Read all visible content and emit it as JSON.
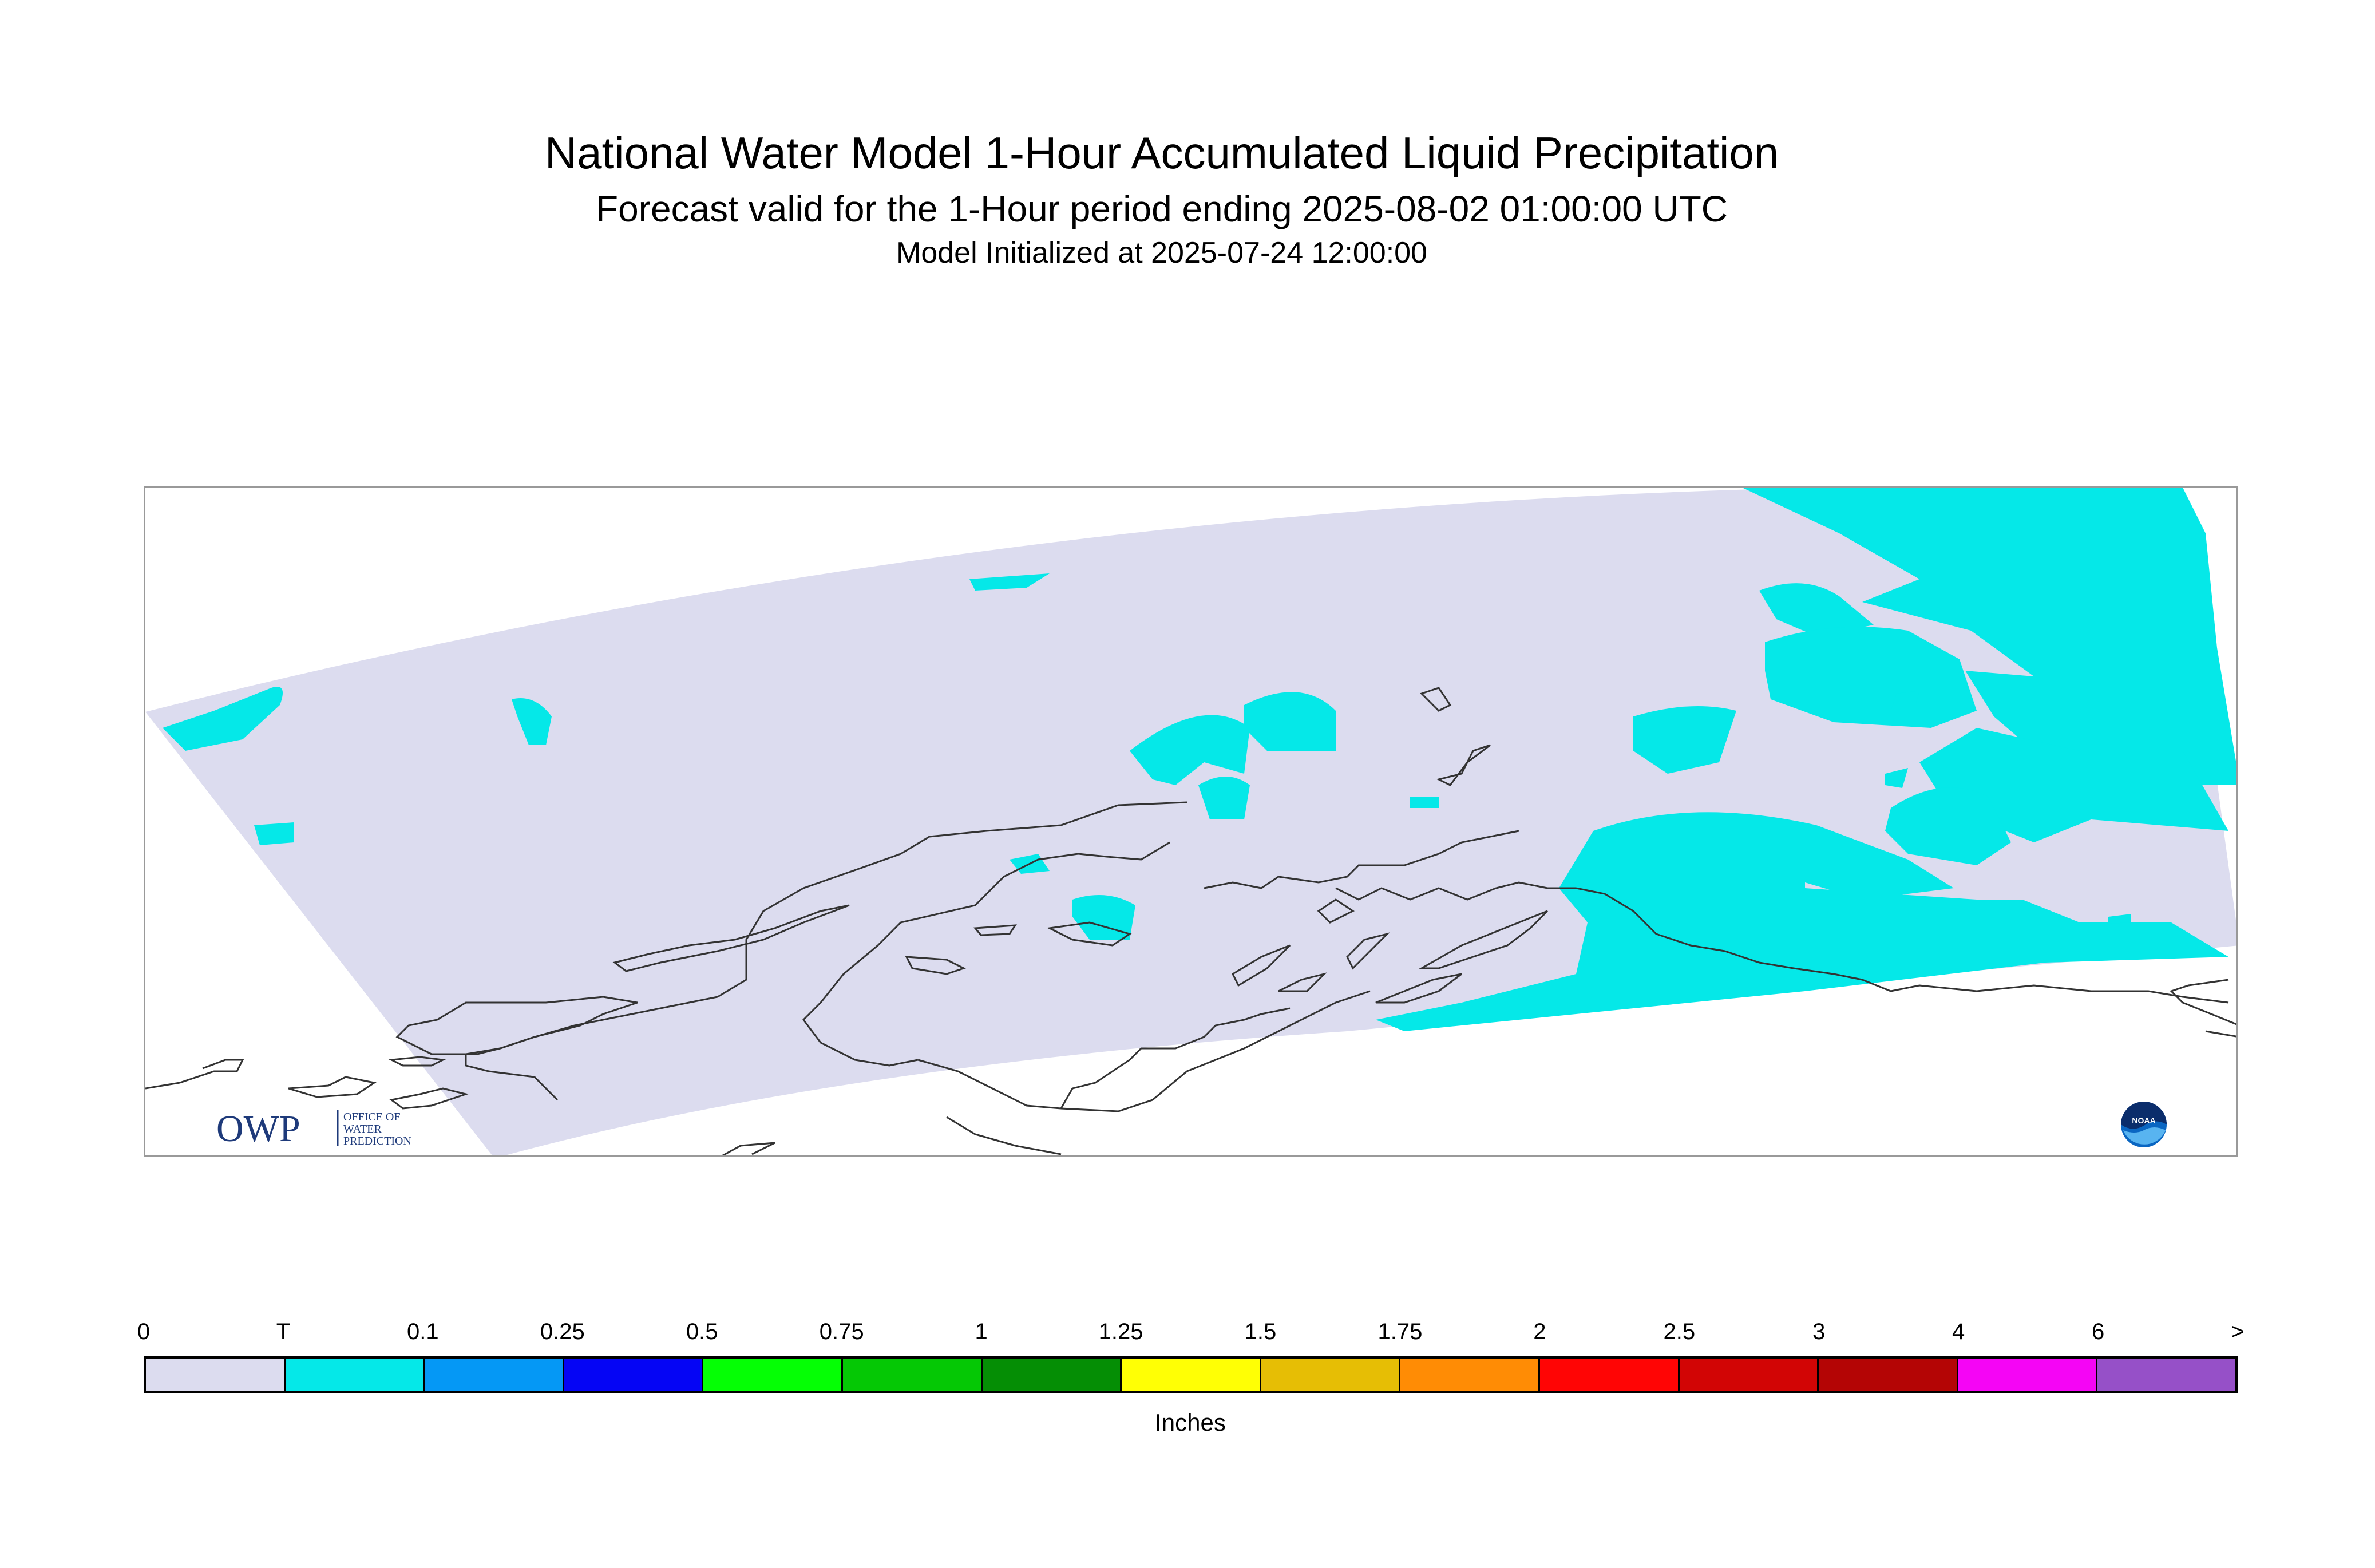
{
  "header": {
    "title": "National Water Model 1-Hour Accumulated Liquid Precipitation",
    "subtitle": "Forecast valid for the 1-Hour period ending 2025-08-02 01:00:00 UTC",
    "init": "Model Initialized at 2025-07-24 12:00:00"
  },
  "logos": {
    "owp_mark": "OWP",
    "owp_text_1": "OFFICE OF",
    "owp_text_2": "WATER",
    "owp_text_3": "PREDICTION",
    "noaa_mark": "NOAA"
  },
  "legend": {
    "units": "Inches",
    "labels": [
      "0",
      "T",
      "0.1",
      "0.25",
      "0.5",
      "0.75",
      "1",
      "1.25",
      "1.5",
      "1.75",
      "2",
      "2.5",
      "3",
      "4",
      "6",
      ">"
    ],
    "colors": [
      "#dcdcef",
      "#05e8e8",
      "#0598f5",
      "#0505f5",
      "#05ff05",
      "#05c805",
      "#058e05",
      "#ffff05",
      "#e6be05",
      "#ff8c05",
      "#ff0505",
      "#d20505",
      "#b40505",
      "#f505f5",
      "#9650c8"
    ]
  },
  "map": {
    "domain_color": "#dcdcef",
    "precip_color": "#05e8e8",
    "coast_color": "#333333",
    "precip_category": "T"
  }
}
